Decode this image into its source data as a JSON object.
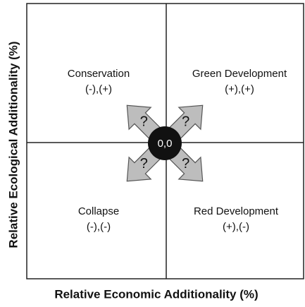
{
  "y_axis_label": "Relative Ecological Additionality (%)",
  "x_axis_label": "Relative Economic Additionality (%)",
  "quadrants": [
    {
      "name": "Conservation",
      "signs": "(-),(+)"
    },
    {
      "name": "Green Development",
      "signs": "(+),(+)"
    },
    {
      "name": "Collapse",
      "signs": "(-),(-)"
    },
    {
      "name": "Red Development",
      "signs": "(+),(-)"
    }
  ],
  "origin_label": "0,0",
  "arrows": [
    "?",
    "?",
    "?",
    "?"
  ]
}
